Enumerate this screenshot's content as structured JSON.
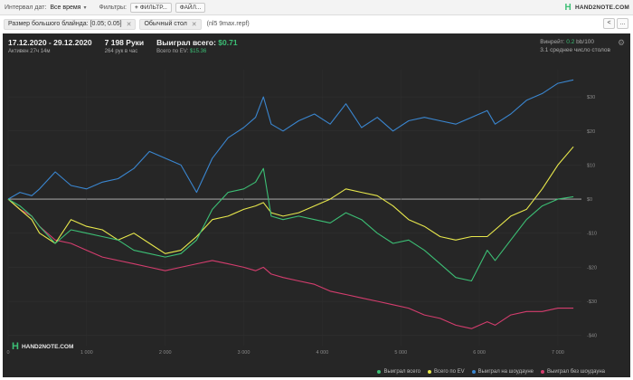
{
  "topbar": {
    "date_label": "Интервал дат:",
    "date_value": "Все время",
    "filters_label": "Фильтры:",
    "filter_button": "ФИЛЬТР...",
    "file_button": "ФАЙЛ...",
    "logo": "HAND2NOTE.COM",
    "prev": "<",
    "more": "..."
  },
  "filterbar": {
    "chips": [
      "Размер большого блайнда: [0.05; 0.05]",
      "Обычный стол"
    ],
    "extra": "(nl5 9max.repf)"
  },
  "stats": {
    "date_range": "17.12.2020 - 29.12.2020",
    "active": "Активен 27ч 14м",
    "hands": "7 198 Руки",
    "hands_per_hour": "264 рук в час",
    "won_label": "Выиграл всего:",
    "won_value": "$0.71",
    "ev_label": "Всего по EV:",
    "ev_value": "$15.36",
    "winrate_label": "Винрейт:",
    "winrate_value": "0.2",
    "winrate_unit": "bb/100",
    "tables": "3.1 среднее число столов"
  },
  "watermark": "HAND2NOTE.COM",
  "colors": {
    "background": "#262626",
    "won": "#3cbf75",
    "ev": "#e8e84c",
    "showdown": "#3a86d0",
    "no_showdown": "#d43d6e"
  },
  "chart_data": {
    "type": "line",
    "x_ticks": [
      0,
      1000,
      2000,
      3000,
      4000,
      5000,
      6000,
      7000
    ],
    "x_tick_labels": [
      "0",
      "1 000",
      "2 000",
      "3 000",
      "4 000",
      "5 000",
      "6 000",
      "7 000"
    ],
    "y_ticks": [
      -40,
      -30,
      -20,
      -10,
      0,
      10,
      20,
      30
    ],
    "y_tick_labels": [
      "-$40",
      "-$30",
      "-$20",
      "-$10",
      "$0",
      "$10",
      "$20",
      "$30"
    ],
    "xlim": [
      0,
      7300
    ],
    "ylim": [
      -43,
      38
    ],
    "legend_position": "bottom-right",
    "series": [
      {
        "name": "Выиграл всего",
        "color": "#3cbf75",
        "x": [
          0,
          150,
          300,
          400,
          600,
          800,
          1000,
          1200,
          1400,
          1600,
          1800,
          2000,
          2200,
          2400,
          2600,
          2800,
          3000,
          3150,
          3250,
          3350,
          3500,
          3700,
          3900,
          4100,
          4300,
          4500,
          4700,
          4900,
          5100,
          5300,
          5500,
          5700,
          5900,
          6100,
          6200,
          6400,
          6600,
          6800,
          7000,
          7198
        ],
        "y": [
          0,
          -2,
          -5,
          -8,
          -13,
          -9,
          -10,
          -11,
          -12,
          -15,
          -16,
          -17,
          -16,
          -12,
          -3,
          2,
          3,
          5,
          9,
          -5,
          -6,
          -5,
          -6,
          -7,
          -4,
          -6,
          -10,
          -13,
          -12,
          -15,
          -19,
          -23,
          -24,
          -15,
          -18,
          -12,
          -6,
          -2,
          0,
          0.71
        ]
      },
      {
        "name": "Всего по EV",
        "color": "#e8e84c",
        "x": [
          0,
          150,
          300,
          400,
          600,
          800,
          1000,
          1200,
          1400,
          1600,
          1800,
          2000,
          2200,
          2400,
          2600,
          2800,
          3000,
          3150,
          3250,
          3350,
          3500,
          3700,
          3900,
          4100,
          4300,
          4500,
          4700,
          4900,
          5100,
          5300,
          5500,
          5700,
          5900,
          6100,
          6200,
          6400,
          6600,
          6800,
          7000,
          7198
        ],
        "y": [
          0,
          -3,
          -6,
          -10,
          -13,
          -6,
          -8,
          -9,
          -12,
          -10,
          -13,
          -16,
          -15,
          -11,
          -6,
          -5,
          -3,
          -2,
          -1,
          -4,
          -5,
          -4,
          -2,
          0,
          3,
          2,
          1,
          -2,
          -6,
          -8,
          -11,
          -12,
          -11,
          -11,
          -9,
          -5,
          -3,
          3,
          10,
          15.36
        ]
      },
      {
        "name": "Выиграл на шоудауне",
        "color": "#3a86d0",
        "x": [
          0,
          150,
          300,
          400,
          600,
          800,
          1000,
          1200,
          1400,
          1600,
          1800,
          2000,
          2200,
          2400,
          2600,
          2800,
          3000,
          3150,
          3250,
          3350,
          3500,
          3700,
          3900,
          4100,
          4300,
          4500,
          4700,
          4900,
          5100,
          5300,
          5500,
          5700,
          5900,
          6100,
          6200,
          6400,
          6600,
          6800,
          7000,
          7198
        ],
        "y": [
          0,
          2,
          1,
          3,
          8,
          4,
          3,
          5,
          6,
          9,
          14,
          12,
          10,
          2,
          12,
          18,
          21,
          24,
          30,
          22,
          20,
          23,
          25,
          22,
          28,
          21,
          24,
          20,
          23,
          24,
          23,
          22,
          24,
          26,
          22,
          25,
          29,
          31,
          34,
          35
        ]
      },
      {
        "name": "Выиграл без шоудауна",
        "color": "#d43d6e",
        "x": [
          0,
          150,
          300,
          400,
          600,
          800,
          1000,
          1200,
          1400,
          1600,
          1800,
          2000,
          2200,
          2400,
          2600,
          2800,
          3000,
          3150,
          3250,
          3350,
          3500,
          3700,
          3900,
          4100,
          4300,
          4500,
          4700,
          4900,
          5100,
          5300,
          5500,
          5700,
          5900,
          6100,
          6200,
          6400,
          6600,
          6800,
          7000,
          7198
        ],
        "y": [
          0,
          -3,
          -5,
          -8,
          -12,
          -13,
          -15,
          -17,
          -18,
          -19,
          -20,
          -21,
          -20,
          -19,
          -18,
          -19,
          -20,
          -21,
          -20,
          -22,
          -23,
          -24,
          -25,
          -27,
          -28,
          -29,
          -30,
          -31,
          -32,
          -34,
          -35,
          -37,
          -38,
          -36,
          -37,
          -34,
          -33,
          -33,
          -32,
          -32
        ]
      }
    ]
  }
}
